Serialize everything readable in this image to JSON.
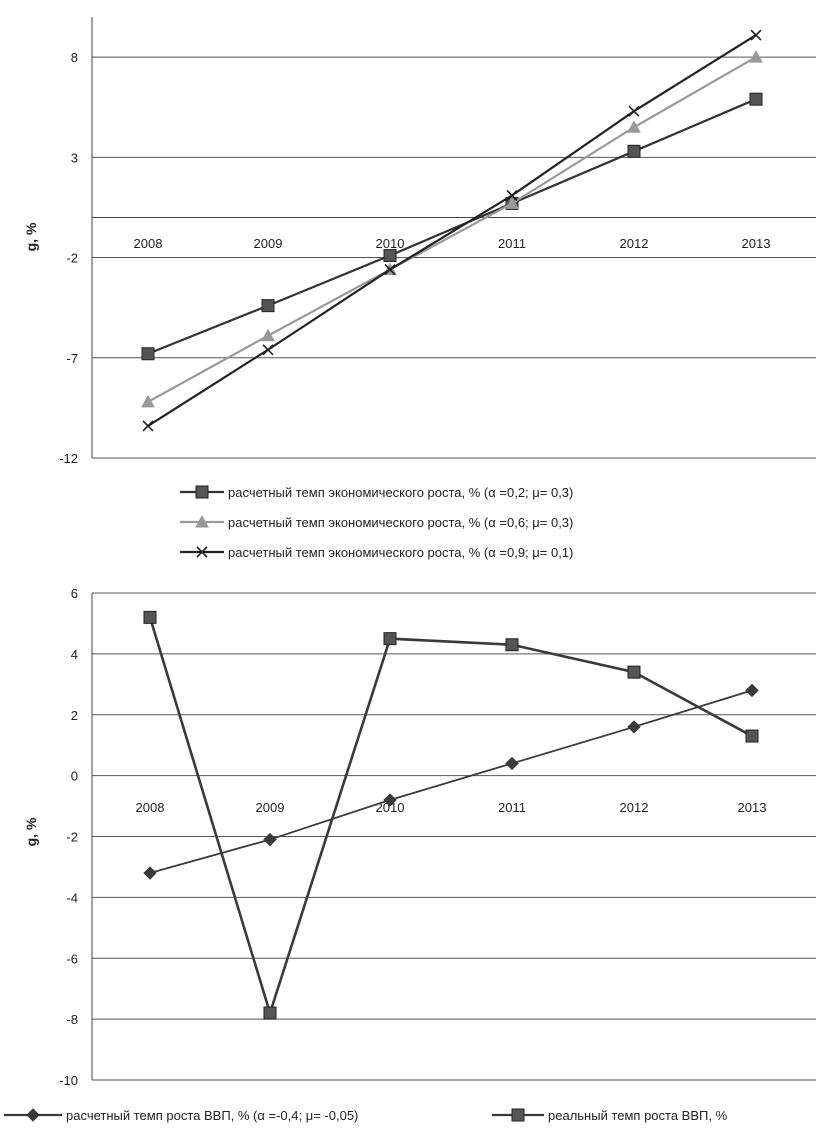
{
  "chart_data": [
    {
      "type": "line",
      "ylabel": "g, %",
      "ylim": [
        -12,
        10
      ],
      "yticks": [
        8,
        3,
        -2,
        -7,
        -12
      ],
      "categories": [
        "2008",
        "2009",
        "2010",
        "2011",
        "2012",
        "2013"
      ],
      "grid": true,
      "legend_position": "bottom",
      "series": [
        {
          "name": "расчетный темп экономического роста, % (α =0,2; μ= 0,3)",
          "marker": "square",
          "color": "#333333",
          "values": [
            -6.8,
            -4.4,
            -1.9,
            0.7,
            3.3,
            5.9
          ]
        },
        {
          "name": "расчетный темп экономического роста, % (α =0,6; μ= 0,3)",
          "marker": "triangle",
          "color": "#999999",
          "values": [
            -9.2,
            -5.9,
            -2.6,
            0.7,
            4.5,
            8.0
          ]
        },
        {
          "name": "расчетный темп экономического роста, % (α =0,9; μ= 0,1)",
          "marker": "x",
          "color": "#222222",
          "values": [
            -10.4,
            -6.6,
            -2.6,
            1.1,
            5.3,
            9.1
          ]
        }
      ]
    },
    {
      "type": "line",
      "ylabel": "g, %",
      "ylim": [
        -10,
        6
      ],
      "yticks": [
        6,
        4,
        2,
        0,
        -2,
        -4,
        -6,
        -8,
        -10
      ],
      "categories": [
        "2008",
        "2009",
        "2010",
        "2011",
        "2012",
        "2013"
      ],
      "grid": true,
      "legend_position": "bottom",
      "series": [
        {
          "name": "расчетный темп роста ВВП, % (α =-0,4; μ= -0,05)",
          "marker": "diamond",
          "color": "#3a3a3a",
          "values": [
            -3.2,
            -2.1,
            -0.8,
            0.4,
            1.6,
            2.8
          ]
        },
        {
          "name": "реальный темп роста ВВП, %",
          "marker": "square",
          "color": "#3a3a3a",
          "values": [
            5.2,
            -7.8,
            4.5,
            4.3,
            3.4,
            1.3
          ]
        }
      ]
    }
  ]
}
